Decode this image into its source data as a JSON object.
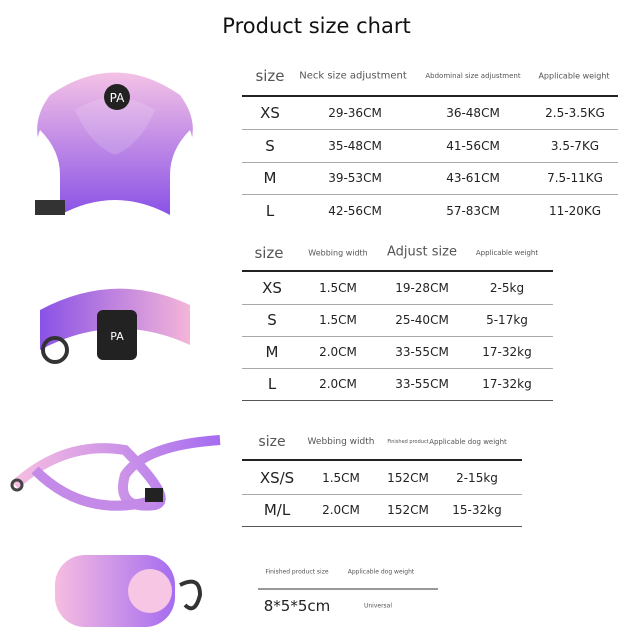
{
  "title": "Product size chart",
  "harness": {
    "headers": [
      "size",
      "Neck size adjustment",
      "Abdominal size adjustment",
      "Applicable weight"
    ],
    "rows": [
      [
        "XS",
        "29-36CM",
        "36-48CM",
        "2.5-3.5KG"
      ],
      [
        "S",
        "35-48CM",
        "41-56CM",
        "3.5-7KG"
      ],
      [
        "M",
        "39-53CM",
        "43-61CM",
        "7.5-11KG"
      ],
      [
        "L",
        "42-56CM",
        "57-83CM",
        "11-20KG"
      ]
    ]
  },
  "collar": {
    "headers": [
      "size",
      "Webbing width",
      "Adjust size",
      "Applicable weight"
    ],
    "rows": [
      [
        "XS",
        "1.5CM",
        "19-28CM",
        "2-5kg"
      ],
      [
        "S",
        "1.5CM",
        "25-40CM",
        "5-17kg"
      ],
      [
        "M",
        "2.0CM",
        "33-55CM",
        "17-32kg"
      ],
      [
        "L",
        "2.0CM",
        "33-55CM",
        "17-32kg"
      ]
    ]
  },
  "leash": {
    "headers": [
      "size",
      "Webbing width",
      "Finished product",
      "Applicable dog weight"
    ],
    "rows": [
      [
        "XS/S",
        "1.5CM",
        "152CM",
        "2-15kg"
      ],
      [
        "M/L",
        "2.0CM",
        "152CM",
        "15-32kg"
      ]
    ]
  },
  "bag": {
    "headers": [
      "Finished product size",
      "Applicable dog weight"
    ],
    "rows": [
      [
        "8*5*5cm",
        "Universal"
      ]
    ]
  },
  "colors": {
    "purple": "#8b5cf0",
    "pink": "#f3b6dc",
    "line": "#333333"
  }
}
